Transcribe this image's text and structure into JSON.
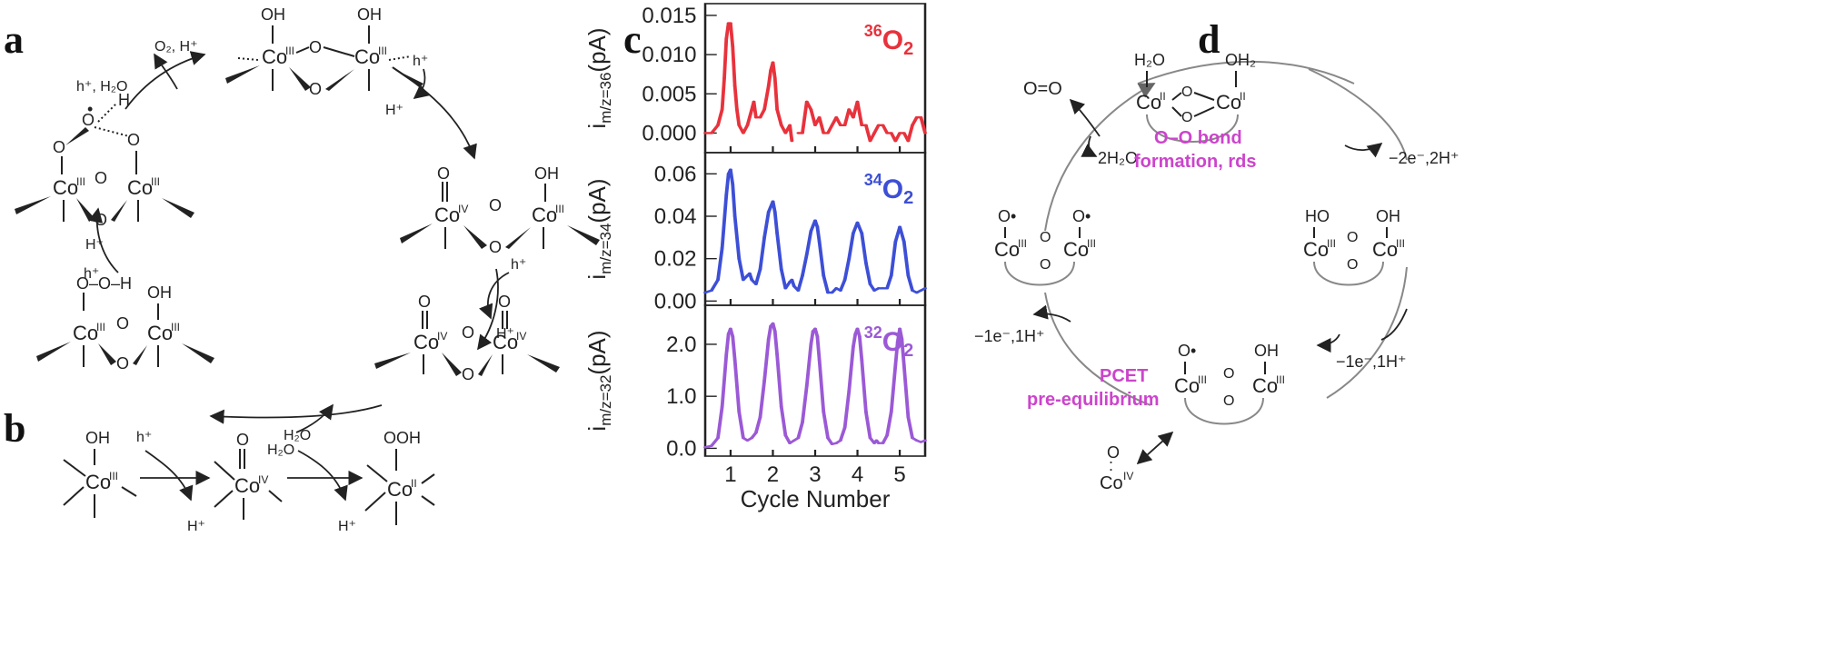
{
  "panels": {
    "a": "a",
    "b": "b",
    "c": "c",
    "d": "d"
  },
  "panel_a": {
    "top_co_left": "Co",
    "top_co_right": "Co",
    "ox_III": "III",
    "ox_IV": "IV",
    "oh": "OH",
    "o": "O",
    "h": "H",
    "ooh_label": "O–O–H",
    "rad_o": "O",
    "rad_dot": "•",
    "reagent_O2H": "O₂, H⁺",
    "reagent_h_H2O": "h⁺, H₂O",
    "reagent_h": "h⁺",
    "reagent_H": "H⁺",
    "reagent_H2O": "H₂O"
  },
  "panel_b": {
    "oh": "OH",
    "o": "O",
    "ooh": "OOH",
    "co": "Co",
    "ox1": "III",
    "ox2": "IV",
    "ox3": "II",
    "h_plus": "h⁺",
    "H_plus": "H⁺",
    "h2o": "H₂O"
  },
  "panel_d": {
    "co": "Co",
    "ox_II": "II",
    "ox_III": "III",
    "ox_IV": "IV",
    "h2o": "H₂O",
    "oh2": "OH₂",
    "ho": "HO",
    "oh": "OH",
    "o": "O",
    "o_rad": "O•",
    "o_eq_o": "O=O",
    "two_h2o": "2H₂O",
    "step_2e": "−2e⁻,2H⁺",
    "step_1e_right": "−1e⁻,1H⁺",
    "step_1e_left": "−1e⁻,1H⁺",
    "label_oo_bond_line1": "O–O bond",
    "label_oo_bond_line2": "formation, rds",
    "label_pcet_line1": "PCET",
    "label_pcet_line2": "pre-equilibrium",
    "co_iv_o": "O",
    "co_iv_eq": ":",
    "colors": {
      "magenta": "#cc44cc",
      "arc": "#8a8a8a"
    }
  },
  "chart_data": {
    "type": "line",
    "xlabel": "Cycle Number",
    "xlim": [
      0.4,
      5.6
    ],
    "xticks": [
      1,
      2,
      3,
      4,
      5
    ],
    "panels": [
      {
        "name": "³⁶O₂",
        "label_sup": "36",
        "label_main": "O",
        "label_sub": "2",
        "color": "#e8323c",
        "ylabel_main": "i",
        "ylabel_sub": "m/z=36",
        "ylabel_unit": "(pA)",
        "ylim": [
          -0.0025,
          0.0165
        ],
        "yticks": [
          "0.015",
          "0.010",
          "0.005",
          "0.000"
        ],
        "ytick_values": [
          0.015,
          0.01,
          0.005,
          0.0
        ],
        "x": [
          0.4,
          0.55,
          0.7,
          0.8,
          0.85,
          0.9,
          0.95,
          1.0,
          1.05,
          1.1,
          1.15,
          1.2,
          1.3,
          1.4,
          1.5,
          1.55,
          1.6,
          1.7,
          1.8,
          1.9,
          1.95,
          2.0,
          2.05,
          2.1,
          2.2,
          2.3,
          2.4,
          2.45,
          2.5,
          2.6,
          2.7,
          2.8,
          2.9,
          3.0,
          3.1,
          3.2,
          3.3,
          3.4,
          3.5,
          3.6,
          3.7,
          3.8,
          3.9,
          4.0,
          4.1,
          4.2,
          4.3,
          4.4,
          4.5,
          4.6,
          4.7,
          4.8,
          4.9,
          5.0,
          5.1,
          5.2,
          5.3,
          5.4,
          5.5,
          5.6
        ],
        "values": [
          0.0,
          0.0,
          0.001,
          0.003,
          0.007,
          0.012,
          0.014,
          0.014,
          0.011,
          0.006,
          0.003,
          0.001,
          0.0,
          0.001,
          0.003,
          0.004,
          0.002,
          0.002,
          0.003,
          0.006,
          0.008,
          0.009,
          0.007,
          0.003,
          0.001,
          0.0,
          0.001,
          -0.001,
          null,
          0.0,
          0.0,
          0.004,
          0.003,
          0.001,
          0.002,
          0.0,
          0.0,
          0.001,
          0.002,
          0.001,
          0.001,
          0.003,
          0.002,
          0.004,
          0.001,
          0.001,
          -0.001,
          0.0,
          0.001,
          0.001,
          0.0,
          0.0,
          -0.001,
          0.0,
          0.0,
          -0.001,
          0.001,
          0.002,
          0.002,
          0.0
        ]
      },
      {
        "name": "³⁴O₂",
        "label_sup": "34",
        "label_main": "O",
        "label_sub": "2",
        "color": "#3d4fd6",
        "ylabel_main": "i",
        "ylabel_sub": "m/z=34",
        "ylabel_unit": "(pA)",
        "ylim": [
          -0.002,
          0.07
        ],
        "yticks": [
          "0.06",
          "0.04",
          "0.02",
          "0.00"
        ],
        "ytick_values": [
          0.06,
          0.04,
          0.02,
          0.0
        ],
        "x": [
          0.4,
          0.55,
          0.7,
          0.8,
          0.9,
          0.95,
          1.0,
          1.05,
          1.1,
          1.2,
          1.3,
          1.4,
          1.45,
          1.5,
          1.6,
          1.7,
          1.8,
          1.9,
          2.0,
          2.05,
          2.1,
          2.2,
          2.3,
          2.4,
          2.45,
          2.5,
          2.6,
          2.7,
          2.8,
          2.9,
          3.0,
          3.05,
          3.1,
          3.2,
          3.3,
          3.4,
          3.5,
          3.6,
          3.7,
          3.8,
          3.9,
          4.0,
          4.1,
          4.2,
          4.3,
          4.4,
          4.5,
          4.6,
          4.7,
          4.8,
          4.9,
          5.0,
          5.1,
          5.2,
          5.3,
          5.4,
          5.5,
          5.6
        ],
        "values": [
          0.004,
          0.005,
          0.01,
          0.025,
          0.05,
          0.06,
          0.062,
          0.055,
          0.04,
          0.02,
          0.01,
          0.012,
          0.013,
          0.01,
          0.008,
          0.015,
          0.03,
          0.042,
          0.047,
          0.042,
          0.032,
          0.015,
          0.006,
          0.009,
          0.01,
          0.007,
          0.005,
          0.012,
          0.022,
          0.033,
          0.038,
          0.035,
          0.028,
          0.012,
          0.004,
          0.004,
          0.006,
          0.005,
          0.01,
          0.02,
          0.032,
          0.037,
          0.032,
          0.018,
          0.008,
          0.005,
          0.006,
          0.006,
          0.006,
          0.012,
          0.028,
          0.035,
          0.028,
          0.012,
          0.005,
          0.004,
          0.005,
          0.006
        ]
      },
      {
        "name": "³²O₂",
        "label_sup": "32",
        "label_main": "O",
        "label_sub": "2",
        "color": "#9b59d6",
        "ylabel_main": "i",
        "ylabel_sub": "m/z=32",
        "ylabel_unit": "(pA)",
        "ylim": [
          -0.15,
          2.75
        ],
        "yticks": [
          "2.0",
          "1.0",
          "0.0"
        ],
        "ytick_values": [
          2.0,
          1.0,
          0.0
        ],
        "x": [
          0.4,
          0.55,
          0.7,
          0.8,
          0.9,
          0.95,
          1.0,
          1.05,
          1.1,
          1.2,
          1.3,
          1.4,
          1.5,
          1.6,
          1.7,
          1.8,
          1.9,
          1.95,
          2.0,
          2.05,
          2.1,
          2.2,
          2.3,
          2.4,
          2.5,
          2.6,
          2.7,
          2.8,
          2.9,
          2.95,
          3.0,
          3.05,
          3.1,
          3.2,
          3.3,
          3.4,
          3.5,
          3.6,
          3.7,
          3.8,
          3.9,
          3.95,
          4.0,
          4.05,
          4.1,
          4.2,
          4.3,
          4.4,
          4.45,
          4.5,
          4.6,
          4.7,
          4.8,
          4.9,
          4.95,
          5.0,
          5.05,
          5.1,
          5.2,
          5.3,
          5.4,
          5.5,
          5.6
        ],
        "values": [
          0.02,
          0.05,
          0.2,
          0.8,
          1.8,
          2.2,
          2.3,
          2.15,
          1.7,
          0.7,
          0.2,
          0.15,
          0.2,
          0.3,
          0.6,
          1.3,
          2.1,
          2.35,
          2.4,
          2.25,
          1.8,
          0.8,
          0.25,
          0.1,
          0.15,
          0.2,
          0.5,
          1.2,
          2.0,
          2.25,
          2.3,
          2.15,
          1.7,
          0.7,
          0.2,
          0.08,
          0.1,
          0.15,
          0.4,
          1.1,
          1.95,
          2.2,
          2.3,
          2.15,
          1.7,
          0.7,
          0.2,
          0.1,
          0.15,
          0.1,
          0.1,
          0.25,
          0.7,
          1.6,
          2.05,
          2.3,
          2.1,
          1.6,
          0.6,
          0.2,
          0.15,
          0.12,
          0.15
        ]
      }
    ]
  }
}
